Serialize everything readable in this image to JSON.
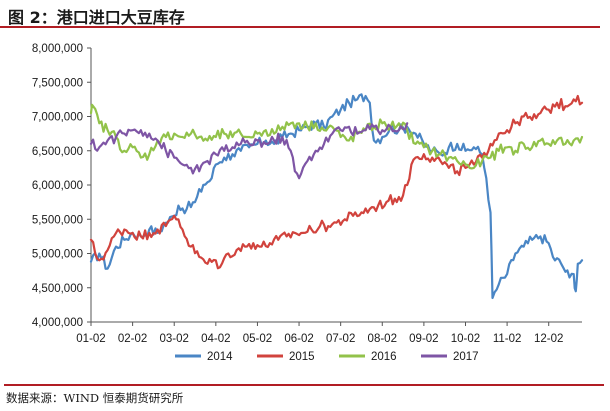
{
  "header": {
    "title": "图 2：港口进口大豆库存"
  },
  "footer": {
    "source": "数据来源：WIND  恒泰期货研究所"
  },
  "colors": {
    "rule": "#b11d24",
    "s2014": "#4a86c5",
    "s2015": "#d1433d",
    "s2016": "#92c24a",
    "s2017": "#7e55a5"
  },
  "chart_data": {
    "type": "line",
    "title": "",
    "xlabel": "",
    "ylabel": "",
    "x_ticks": [
      "01-02",
      "02-02",
      "03-02",
      "04-02",
      "05-02",
      "06-02",
      "07-02",
      "08-02",
      "09-02",
      "10-02",
      "11-02",
      "12-02"
    ],
    "y_ticks": [
      "8,000,000",
      "7,500,000",
      "7,000,000",
      "6,500,000",
      "6,000,000",
      "5,500,000",
      "5,000,000",
      "4,500,000",
      "4,000,000"
    ],
    "ylim": [
      4000000,
      8000000
    ],
    "x_unit": "month",
    "xlim": [
      1.0,
      12.8
    ],
    "grid": false,
    "legend_position": "bottom",
    "series": [
      {
        "name": "2014",
        "color": "#4a86c5",
        "points": [
          [
            1.0,
            4880000
          ],
          [
            1.2,
            5000000
          ],
          [
            1.4,
            4780000
          ],
          [
            1.6,
            5100000
          ],
          [
            1.8,
            5200000
          ],
          [
            2.0,
            5300000
          ],
          [
            2.2,
            5250000
          ],
          [
            2.4,
            5350000
          ],
          [
            2.6,
            5300000
          ],
          [
            2.8,
            5450000
          ],
          [
            3.0,
            5550000
          ],
          [
            3.1,
            5700000
          ],
          [
            3.3,
            5650000
          ],
          [
            3.5,
            5750000
          ],
          [
            3.7,
            6000000
          ],
          [
            3.9,
            6100000
          ],
          [
            4.0,
            6300000
          ],
          [
            4.2,
            6400000
          ],
          [
            4.4,
            6450000
          ],
          [
            4.6,
            6500000
          ],
          [
            4.8,
            6550000
          ],
          [
            5.0,
            6600000
          ],
          [
            5.2,
            6650000
          ],
          [
            5.4,
            6600000
          ],
          [
            5.6,
            6700000
          ],
          [
            5.8,
            6750000
          ],
          [
            6.0,
            6800000
          ],
          [
            6.2,
            6850000
          ],
          [
            6.4,
            6900000
          ],
          [
            6.6,
            6850000
          ],
          [
            6.8,
            7000000
          ],
          [
            7.0,
            7100000
          ],
          [
            7.2,
            7200000
          ],
          [
            7.4,
            7250000
          ],
          [
            7.6,
            7300000
          ],
          [
            7.7,
            7200000
          ],
          [
            7.8,
            6650000
          ],
          [
            8.0,
            6700000
          ],
          [
            8.2,
            6850000
          ],
          [
            8.4,
            6800000
          ],
          [
            8.6,
            6850000
          ],
          [
            8.8,
            6750000
          ],
          [
            9.0,
            6600000
          ],
          [
            9.2,
            6500000
          ],
          [
            9.4,
            6450000
          ],
          [
            9.6,
            6550000
          ],
          [
            9.8,
            6600000
          ],
          [
            10.0,
            6500000
          ],
          [
            10.2,
            6550000
          ],
          [
            10.4,
            6450000
          ],
          [
            10.5,
            6100000
          ],
          [
            10.6,
            5600000
          ],
          [
            10.65,
            4350000
          ],
          [
            10.8,
            4550000
          ],
          [
            11.0,
            4700000
          ],
          [
            11.2,
            5000000
          ],
          [
            11.4,
            5100000
          ],
          [
            11.6,
            5200000
          ],
          [
            11.8,
            5250000
          ],
          [
            12.0,
            5150000
          ],
          [
            12.1,
            4950000
          ],
          [
            12.3,
            4850000
          ],
          [
            12.5,
            4650000
          ],
          [
            12.6,
            4700000
          ],
          [
            12.65,
            4450000
          ],
          [
            12.7,
            4850000
          ],
          [
            12.8,
            4900000
          ]
        ]
      },
      {
        "name": "2015",
        "color": "#d1433d",
        "points": [
          [
            1.0,
            5200000
          ],
          [
            1.1,
            5000000
          ],
          [
            1.2,
            4900000
          ],
          [
            1.4,
            5050000
          ],
          [
            1.6,
            5300000
          ],
          [
            1.8,
            5350000
          ],
          [
            2.0,
            5300000
          ],
          [
            2.2,
            5250000
          ],
          [
            2.4,
            5300000
          ],
          [
            2.6,
            5350000
          ],
          [
            2.8,
            5400000
          ],
          [
            3.0,
            5550000
          ],
          [
            3.1,
            5500000
          ],
          [
            3.2,
            5350000
          ],
          [
            3.4,
            5100000
          ],
          [
            3.6,
            4950000
          ],
          [
            3.8,
            4850000
          ],
          [
            4.0,
            4900000
          ],
          [
            4.1,
            4800000
          ],
          [
            4.3,
            5000000
          ],
          [
            4.5,
            5050000
          ],
          [
            4.7,
            5100000
          ],
          [
            4.9,
            5150000
          ],
          [
            5.1,
            5100000
          ],
          [
            5.3,
            5150000
          ],
          [
            5.5,
            5200000
          ],
          [
            5.7,
            5250000
          ],
          [
            5.9,
            5300000
          ],
          [
            6.1,
            5300000
          ],
          [
            6.3,
            5350000
          ],
          [
            6.5,
            5400000
          ],
          [
            6.7,
            5400000
          ],
          [
            6.9,
            5450000
          ],
          [
            7.1,
            5500000
          ],
          [
            7.3,
            5550000
          ],
          [
            7.5,
            5600000
          ],
          [
            7.7,
            5650000
          ],
          [
            7.9,
            5700000
          ],
          [
            8.1,
            5750000
          ],
          [
            8.3,
            5800000
          ],
          [
            8.5,
            5850000
          ],
          [
            8.6,
            6000000
          ],
          [
            8.7,
            6300000
          ],
          [
            8.8,
            6400000
          ],
          [
            9.0,
            6450000
          ],
          [
            9.2,
            6400000
          ],
          [
            9.4,
            6350000
          ],
          [
            9.6,
            6250000
          ],
          [
            9.8,
            6200000
          ],
          [
            10.0,
            6250000
          ],
          [
            10.2,
            6300000
          ],
          [
            10.4,
            6400000
          ],
          [
            10.6,
            6600000
          ],
          [
            10.8,
            6750000
          ],
          [
            11.0,
            6800000
          ],
          [
            11.2,
            6900000
          ],
          [
            11.4,
            7000000
          ],
          [
            11.6,
            6950000
          ],
          [
            11.8,
            7050000
          ],
          [
            12.0,
            7100000
          ],
          [
            12.2,
            7200000
          ],
          [
            12.4,
            7150000
          ],
          [
            12.6,
            7250000
          ],
          [
            12.7,
            7300000
          ],
          [
            12.8,
            7200000
          ]
        ]
      },
      {
        "name": "2016",
        "color": "#92c24a",
        "points": [
          [
            1.0,
            7050000
          ],
          [
            1.05,
            7150000
          ],
          [
            1.2,
            6900000
          ],
          [
            1.4,
            6800000
          ],
          [
            1.6,
            6700000
          ],
          [
            1.8,
            6500000
          ],
          [
            2.0,
            6550000
          ],
          [
            2.2,
            6400000
          ],
          [
            2.4,
            6450000
          ],
          [
            2.6,
            6650000
          ],
          [
            2.8,
            6700000
          ],
          [
            3.0,
            6750000
          ],
          [
            3.2,
            6700000
          ],
          [
            3.4,
            6750000
          ],
          [
            3.6,
            6700000
          ],
          [
            3.8,
            6650000
          ],
          [
            4.0,
            6700000
          ],
          [
            4.2,
            6750000
          ],
          [
            4.4,
            6700000
          ],
          [
            4.6,
            6750000
          ],
          [
            4.8,
            6700000
          ],
          [
            5.0,
            6750000
          ],
          [
            5.2,
            6800000
          ],
          [
            5.4,
            6750000
          ],
          [
            5.6,
            6850000
          ],
          [
            5.8,
            6900000
          ],
          [
            6.0,
            6900000
          ],
          [
            6.2,
            6850000
          ],
          [
            6.4,
            6900000
          ],
          [
            6.6,
            6800000
          ],
          [
            6.8,
            6850000
          ],
          [
            7.0,
            6700000
          ],
          [
            7.2,
            6650000
          ],
          [
            7.4,
            6750000
          ],
          [
            7.6,
            6800000
          ],
          [
            7.8,
            6850000
          ],
          [
            8.0,
            6900000
          ],
          [
            8.2,
            6850000
          ],
          [
            8.4,
            6900000
          ],
          [
            8.6,
            6800000
          ],
          [
            8.8,
            6600000
          ],
          [
            9.0,
            6550000
          ],
          [
            9.2,
            6500000
          ],
          [
            9.4,
            6450000
          ],
          [
            9.6,
            6400000
          ],
          [
            9.8,
            6350000
          ],
          [
            10.0,
            6300000
          ],
          [
            10.2,
            6250000
          ],
          [
            10.4,
            6350000
          ],
          [
            10.6,
            6400000
          ],
          [
            10.8,
            6500000
          ],
          [
            11.0,
            6550000
          ],
          [
            11.2,
            6500000
          ],
          [
            11.4,
            6600000
          ],
          [
            11.6,
            6550000
          ],
          [
            11.8,
            6650000
          ],
          [
            12.0,
            6600000
          ],
          [
            12.2,
            6650000
          ],
          [
            12.4,
            6600000
          ],
          [
            12.6,
            6650000
          ],
          [
            12.8,
            6700000
          ]
        ]
      },
      {
        "name": "2017",
        "color": "#7e55a5",
        "points": [
          [
            1.0,
            6600000
          ],
          [
            1.2,
            6550000
          ],
          [
            1.4,
            6650000
          ],
          [
            1.6,
            6700000
          ],
          [
            1.8,
            6750000
          ],
          [
            2.0,
            6800000
          ],
          [
            2.2,
            6800000
          ],
          [
            2.4,
            6750000
          ],
          [
            2.6,
            6650000
          ],
          [
            2.8,
            6500000
          ],
          [
            3.0,
            6400000
          ],
          [
            3.2,
            6300000
          ],
          [
            3.4,
            6250000
          ],
          [
            3.6,
            6200000
          ],
          [
            3.8,
            6350000
          ],
          [
            4.0,
            6450000
          ],
          [
            4.2,
            6500000
          ],
          [
            4.4,
            6550000
          ],
          [
            4.6,
            6600000
          ],
          [
            4.8,
            6600000
          ],
          [
            5.0,
            6650000
          ],
          [
            5.2,
            6600000
          ],
          [
            5.4,
            6650000
          ],
          [
            5.6,
            6700000
          ],
          [
            5.8,
            6500000
          ],
          [
            5.9,
            6200000
          ],
          [
            6.0,
            6100000
          ],
          [
            6.2,
            6350000
          ],
          [
            6.4,
            6500000
          ],
          [
            6.6,
            6600000
          ],
          [
            6.8,
            6750000
          ],
          [
            7.0,
            6800000
          ],
          [
            7.2,
            6850000
          ],
          [
            7.4,
            6750000
          ],
          [
            7.6,
            6800000
          ],
          [
            7.8,
            6850000
          ],
          [
            8.0,
            6800000
          ],
          [
            8.2,
            6850000
          ],
          [
            8.4,
            6800000
          ],
          [
            8.6,
            6900000
          ]
        ]
      }
    ]
  }
}
